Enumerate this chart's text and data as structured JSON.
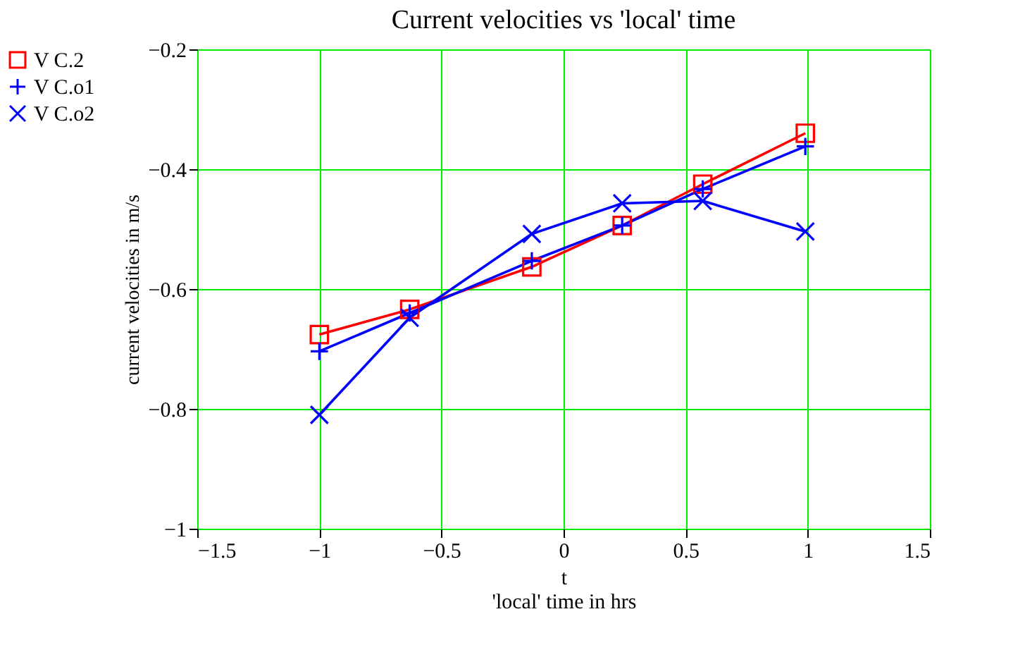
{
  "chart_data": {
    "type": "line",
    "title": "Current velocities vs 'local' time",
    "xlabel": "t\n'local' time in hrs",
    "ylabel": "current velocities in m/s",
    "x": [
      -1.0,
      -0.63,
      -0.13,
      0.24,
      0.57,
      0.99
    ],
    "series": [
      {
        "name": "V C.2",
        "color": "#ff0000",
        "marker": "square",
        "values": [
          -0.676,
          -0.634,
          -0.563,
          -0.494,
          -0.425,
          -0.34
        ]
      },
      {
        "name": "V C.o1",
        "color": "#0000ff",
        "marker": "cross",
        "values": [
          -0.704,
          -0.64,
          -0.553,
          -0.494,
          -0.433,
          -0.362
        ]
      },
      {
        "name": "V C.o2",
        "color": "#0000ff",
        "marker": "x",
        "values": [
          -0.81,
          -0.648,
          -0.508,
          -0.457,
          -0.453,
          -0.504
        ]
      }
    ],
    "xlim": [
      -1.5,
      1.5
    ],
    "xticks": [
      -1.5,
      -1,
      -0.5,
      0,
      0.5,
      1,
      1.5
    ],
    "ylim": [
      -1,
      -0.2
    ],
    "yticks": [
      -1,
      -0.8,
      -0.6,
      -0.4,
      -0.2
    ],
    "grid": true,
    "legend": "left",
    "line_style": "solid"
  }
}
